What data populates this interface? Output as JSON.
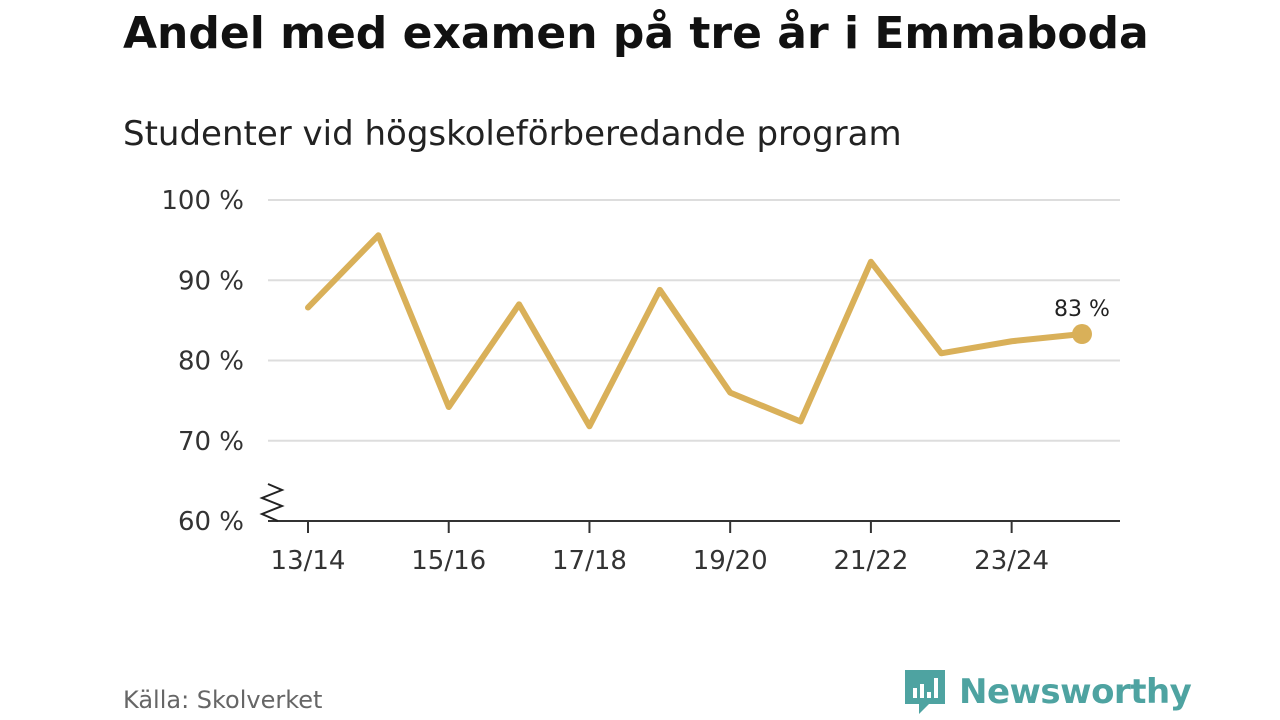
{
  "title": "Andel med examen på tre år i Emmaboda",
  "subtitle": "Studenter vid högskoleförberedande program",
  "source": "Källa: Skolverket",
  "brand": {
    "name": "Newsworthy",
    "icon": "newsworthy-logo-icon"
  },
  "colors": {
    "line": "#d9b059",
    "grid": "#dddddd",
    "axis": "#333333",
    "brand": "#4ea3a1"
  },
  "chart_data": {
    "type": "line",
    "title": "Andel med examen på tre år i Emmaboda",
    "subtitle": "Studenter vid högskoleförberedande program",
    "xlabel": "",
    "ylabel": "",
    "x": [
      "13/14",
      "14/15",
      "15/16",
      "16/17",
      "17/18",
      "18/19",
      "19/20",
      "20/21",
      "21/22",
      "22/23",
      "23/24",
      "24/25"
    ],
    "x_tick_labels": [
      "13/14",
      "15/16",
      "17/18",
      "19/20",
      "21/22",
      "23/24"
    ],
    "series": [
      {
        "name": "Andel med examen",
        "values": [
          86.6,
          95.6,
          74.2,
          87.0,
          71.8,
          88.8,
          76.0,
          72.4,
          92.3,
          80.9,
          82.4,
          83.3
        ]
      }
    ],
    "ylim": [
      60,
      100
    ],
    "yticks": [
      60,
      70,
      80,
      90,
      100
    ],
    "ytick_labels": [
      "60 %",
      "70 %",
      "80 %",
      "90 %",
      "100 %"
    ],
    "y_axis_break": true,
    "end_label": "83 %",
    "grid": true
  }
}
